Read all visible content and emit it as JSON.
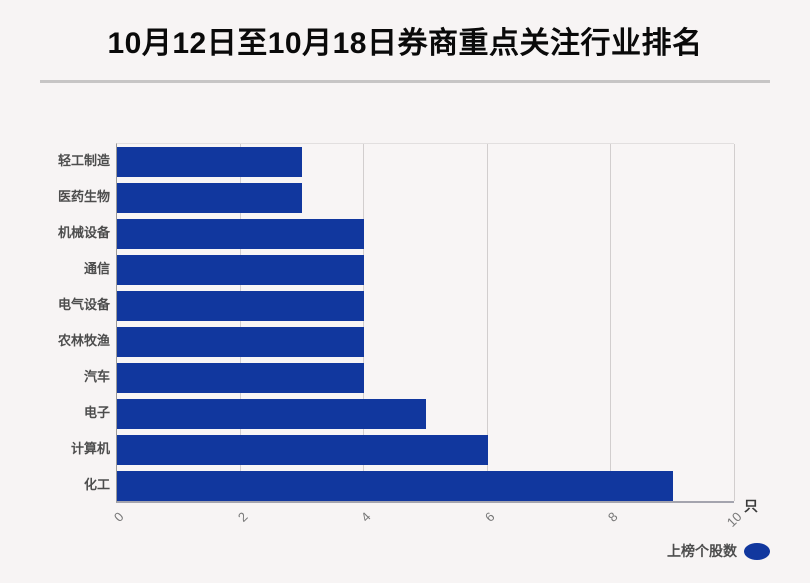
{
  "title": "10月12日至10月18日券商重点关注行业排名",
  "chart_data": {
    "type": "bar",
    "orientation": "horizontal",
    "title": "10月12日至10月18日券商重点关注行业排名",
    "categories": [
      "轻工制造",
      "医药生物",
      "机械设备",
      "通信",
      "电气设备",
      "农林牧渔",
      "汽车",
      "电子",
      "计算机",
      "化工"
    ],
    "series": [
      {
        "name": "上榜个股数",
        "values": [
          3,
          3,
          4,
          4,
          4,
          4,
          4,
          5,
          6,
          9
        ]
      }
    ],
    "value_axis_label": "只",
    "xticks": [
      0,
      2,
      4,
      6,
      8,
      10
    ],
    "xlim": [
      0,
      10
    ],
    "grid": "vertical-gridlines-on",
    "legend_position": "bottom-right",
    "bar_color": "#11379e"
  },
  "legend": {
    "label": "上榜个股数",
    "marker": "blue-ellipse",
    "marker_color": "#11379e"
  },
  "unit_label": "只",
  "colors": {
    "background": "#f7f4f4",
    "bar": "#11379e",
    "title_text": "#0a0a0a",
    "category_text": "#4d4d4d",
    "tick_text": "#777777",
    "gridline": "#d2cece",
    "axis_line": "#9a9a9a",
    "divider": "#c7c5c5"
  }
}
